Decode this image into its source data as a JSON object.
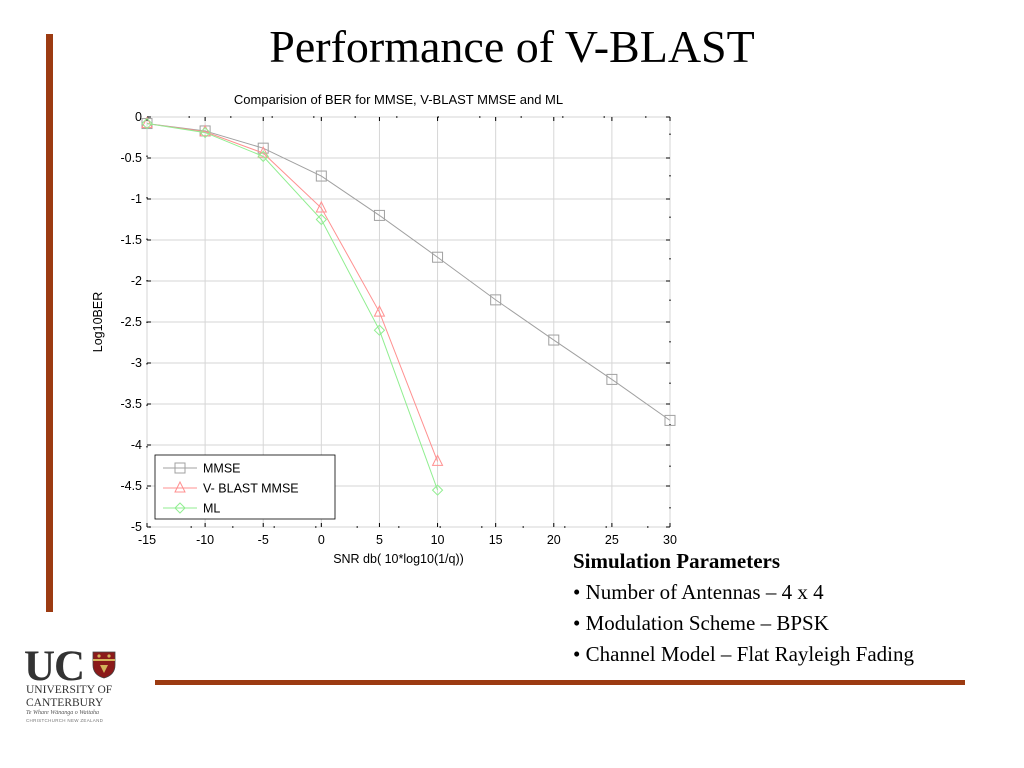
{
  "slide": {
    "title": "Performance of V-BLAST"
  },
  "params": {
    "title": "Simulation Parameters",
    "items": [
      "• Number of Antennas – 4 x 4",
      "• Modulation Scheme – BPSK",
      "• Channel Model – Flat Rayleigh Fading"
    ]
  },
  "logo": {
    "uc": "UC",
    "line1": "UNIVERSITY OF",
    "line2": "CANTERBURY",
    "line3": "Te Whare Wānanga o Waitaha",
    "line4": "CHRISTCHURCH NEW ZEALAND"
  },
  "colors": {
    "accent_bar": "#9c3b12"
  },
  "chart_data": {
    "type": "line",
    "title": "Comparision of BER for  MMSE, V-BLAST MMSE and ML",
    "xlabel": "SNR db( 10*log10(1/q))",
    "ylabel": "Log10BER",
    "xlim": [
      -15,
      30
    ],
    "ylim": [
      -5,
      0
    ],
    "xticks": [
      -15,
      -10,
      -5,
      0,
      5,
      10,
      15,
      20,
      25,
      30
    ],
    "yticks": [
      0,
      -0.5,
      -1,
      -1.5,
      -2,
      -2.5,
      -3,
      -3.5,
      -4,
      -4.5,
      -5
    ],
    "grid": true,
    "legend": "bottom-left",
    "series": [
      {
        "name": "MMSE",
        "color": "#a0a0a0",
        "marker": "square",
        "x": [
          -15,
          -10,
          -5,
          0,
          5,
          10,
          15,
          20,
          25,
          30
        ],
        "y": [
          -0.08,
          -0.17,
          -0.38,
          -0.72,
          -1.2,
          -1.71,
          -2.23,
          -2.72,
          -3.2,
          -3.7
        ]
      },
      {
        "name": "V- BLAST MMSE",
        "color": "#ff9090",
        "marker": "triangle",
        "x": [
          -15,
          -10,
          -5,
          0,
          5,
          10
        ],
        "y": [
          -0.08,
          -0.18,
          -0.44,
          -1.11,
          -2.38,
          -4.2
        ]
      },
      {
        "name": "ML",
        "color": "#90ee90",
        "marker": "diamond",
        "x": [
          -15,
          -10,
          -5,
          0,
          5,
          10
        ],
        "y": [
          -0.08,
          -0.19,
          -0.48,
          -1.25,
          -2.6,
          -4.55
        ]
      }
    ]
  }
}
